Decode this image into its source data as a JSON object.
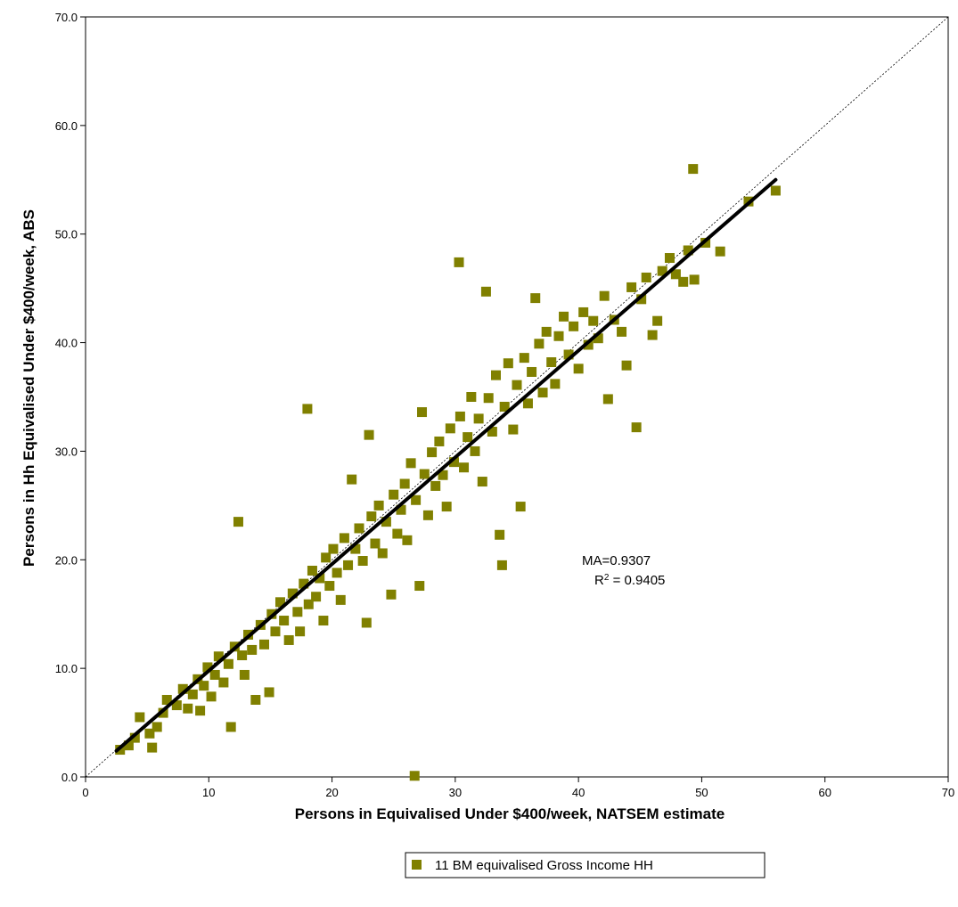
{
  "chart_data": {
    "type": "scatter",
    "title": "",
    "xlabel": "Persons in Equivalised Under $400/week, NATSEM estimate",
    "ylabel": "Persons in Hh Equivalised Under $400/week, ABS",
    "xlim": [
      0,
      70
    ],
    "ylim": [
      0,
      70
    ],
    "x_ticks": [
      "0",
      "10",
      "20",
      "30",
      "40",
      "50",
      "60",
      "70"
    ],
    "y_ticks": [
      "0.0",
      "10.0",
      "20.0",
      "30.0",
      "40.0",
      "50.0",
      "60.0",
      "70.0"
    ],
    "grid": false,
    "legend_position": "bottom",
    "legend_entry": "11 BM equivalised Gross Income HH",
    "annotation": {
      "ma": "MA=0.9307",
      "r2_prefix": "R",
      "r2_sup": "2",
      "r2_suffix": " = 0.9405"
    },
    "marker_color": "#808000",
    "trend_line": {
      "x": [
        2.5,
        56.0
      ],
      "y": [
        2.4,
        55.0
      ]
    },
    "reference_line": {
      "x": [
        0,
        70
      ],
      "y": [
        0,
        70
      ]
    },
    "series": [
      {
        "name": "11 BM equivalised Gross Income HH",
        "points": [
          [
            2.8,
            2.5
          ],
          [
            3.5,
            2.9
          ],
          [
            4.0,
            3.6
          ],
          [
            4.4,
            5.5
          ],
          [
            5.2,
            4.0
          ],
          [
            5.4,
            2.7
          ],
          [
            5.8,
            4.6
          ],
          [
            6.3,
            5.9
          ],
          [
            6.6,
            7.1
          ],
          [
            7.4,
            6.6
          ],
          [
            7.9,
            8.1
          ],
          [
            8.3,
            6.3
          ],
          [
            8.7,
            7.6
          ],
          [
            9.1,
            9.0
          ],
          [
            9.3,
            6.1
          ],
          [
            9.6,
            8.4
          ],
          [
            9.9,
            10.1
          ],
          [
            10.2,
            7.4
          ],
          [
            10.5,
            9.4
          ],
          [
            10.8,
            11.1
          ],
          [
            11.2,
            8.7
          ],
          [
            11.6,
            10.4
          ],
          [
            11.8,
            4.6
          ],
          [
            12.1,
            12.0
          ],
          [
            12.4,
            23.5
          ],
          [
            12.7,
            11.2
          ],
          [
            12.9,
            9.4
          ],
          [
            13.2,
            13.1
          ],
          [
            13.5,
            11.7
          ],
          [
            13.8,
            7.1
          ],
          [
            14.2,
            14.0
          ],
          [
            14.5,
            12.2
          ],
          [
            14.9,
            7.8
          ],
          [
            15.1,
            15.0
          ],
          [
            15.4,
            13.4
          ],
          [
            15.8,
            16.1
          ],
          [
            16.1,
            14.4
          ],
          [
            16.5,
            12.6
          ],
          [
            16.8,
            16.9
          ],
          [
            17.2,
            15.2
          ],
          [
            17.4,
            13.4
          ],
          [
            17.7,
            17.8
          ],
          [
            18.0,
            33.9
          ],
          [
            18.1,
            15.9
          ],
          [
            18.4,
            19.0
          ],
          [
            18.7,
            16.6
          ],
          [
            19.0,
            18.3
          ],
          [
            19.3,
            14.4
          ],
          [
            19.5,
            20.2
          ],
          [
            19.8,
            17.6
          ],
          [
            20.1,
            21.0
          ],
          [
            20.4,
            18.8
          ],
          [
            20.7,
            16.3
          ],
          [
            21.0,
            22.0
          ],
          [
            21.3,
            19.5
          ],
          [
            21.6,
            27.4
          ],
          [
            21.9,
            21.0
          ],
          [
            22.2,
            22.9
          ],
          [
            22.5,
            19.9
          ],
          [
            22.8,
            14.2
          ],
          [
            23.0,
            31.5
          ],
          [
            23.2,
            24.0
          ],
          [
            23.5,
            21.5
          ],
          [
            23.8,
            25.0
          ],
          [
            24.1,
            20.6
          ],
          [
            24.4,
            23.5
          ],
          [
            24.8,
            16.8
          ],
          [
            25.0,
            26.0
          ],
          [
            25.3,
            22.4
          ],
          [
            25.6,
            24.6
          ],
          [
            25.9,
            27.0
          ],
          [
            26.1,
            21.8
          ],
          [
            26.4,
            28.9
          ],
          [
            26.7,
            0.1
          ],
          [
            26.8,
            25.5
          ],
          [
            27.1,
            17.6
          ],
          [
            27.3,
            33.6
          ],
          [
            27.5,
            27.9
          ],
          [
            27.8,
            24.1
          ],
          [
            28.1,
            29.9
          ],
          [
            28.4,
            26.8
          ],
          [
            28.7,
            30.9
          ],
          [
            29.0,
            27.8
          ],
          [
            29.3,
            24.9
          ],
          [
            29.6,
            32.1
          ],
          [
            29.9,
            29.0
          ],
          [
            30.3,
            47.4
          ],
          [
            30.4,
            33.2
          ],
          [
            30.7,
            28.5
          ],
          [
            31.0,
            31.3
          ],
          [
            31.3,
            35.0
          ],
          [
            31.6,
            30.0
          ],
          [
            31.9,
            33.0
          ],
          [
            32.2,
            27.2
          ],
          [
            32.5,
            44.7
          ],
          [
            32.7,
            34.9
          ],
          [
            33.0,
            31.8
          ],
          [
            33.3,
            37.0
          ],
          [
            33.6,
            22.3
          ],
          [
            33.8,
            19.5
          ],
          [
            34.0,
            34.1
          ],
          [
            34.3,
            38.1
          ],
          [
            34.7,
            32.0
          ],
          [
            35.0,
            36.1
          ],
          [
            35.3,
            24.9
          ],
          [
            35.6,
            38.6
          ],
          [
            35.9,
            34.4
          ],
          [
            36.2,
            37.3
          ],
          [
            36.5,
            44.1
          ],
          [
            36.8,
            39.9
          ],
          [
            37.1,
            35.4
          ],
          [
            37.4,
            41.0
          ],
          [
            37.8,
            38.2
          ],
          [
            38.1,
            36.2
          ],
          [
            38.4,
            40.6
          ],
          [
            38.8,
            42.4
          ],
          [
            39.2,
            38.9
          ],
          [
            39.6,
            41.5
          ],
          [
            40.0,
            37.6
          ],
          [
            40.4,
            42.8
          ],
          [
            40.8,
            39.8
          ],
          [
            41.2,
            42.0
          ],
          [
            41.6,
            40.4
          ],
          [
            42.1,
            44.3
          ],
          [
            42.4,
            34.8
          ],
          [
            42.9,
            42.1
          ],
          [
            43.5,
            41.0
          ],
          [
            43.9,
            37.9
          ],
          [
            44.3,
            45.1
          ],
          [
            44.7,
            32.2
          ],
          [
            45.1,
            44.0
          ],
          [
            45.5,
            46.0
          ],
          [
            46.0,
            40.7
          ],
          [
            46.4,
            42.0
          ],
          [
            46.8,
            46.6
          ],
          [
            47.4,
            47.8
          ],
          [
            47.9,
            46.3
          ],
          [
            48.5,
            45.6
          ],
          [
            48.9,
            48.5
          ],
          [
            49.4,
            45.8
          ],
          [
            49.3,
            56.0
          ],
          [
            50.3,
            49.2
          ],
          [
            51.5,
            48.4
          ],
          [
            53.8,
            53.0
          ],
          [
            56.0,
            54.0
          ]
        ]
      }
    ]
  }
}
